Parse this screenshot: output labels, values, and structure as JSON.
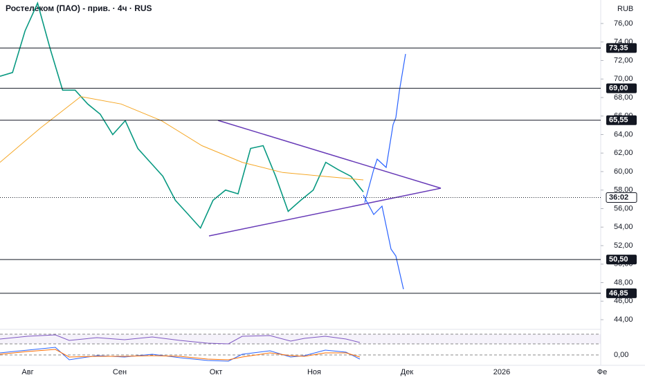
{
  "chart_data": {
    "type": "line",
    "title": "Ростелеком (ПАО) - прив. · 4ч · RUS",
    "currency": "RUB",
    "time_labels": [
      "Авг",
      "Сен",
      "Окт",
      "Ноя",
      "Дек",
      "2026",
      "Фе"
    ],
    "ylim": [
      43,
      78.5
    ],
    "yticks": [
      {
        "value": 44,
        "label": "44,00"
      },
      {
        "value": 46,
        "label": "46,00"
      },
      {
        "value": 48,
        "label": "48,00"
      },
      {
        "value": 50,
        "label": "50,00"
      },
      {
        "value": 52,
        "label": "52,00"
      },
      {
        "value": 54,
        "label": "54,00"
      },
      {
        "value": 56,
        "label": "56,00"
      },
      {
        "value": 58,
        "label": "58,00"
      },
      {
        "value": 60,
        "label": "60,00"
      },
      {
        "value": 62,
        "label": "62,00"
      },
      {
        "value": 64,
        "label": "64,00"
      },
      {
        "value": 66,
        "label": "66,00"
      },
      {
        "value": 68,
        "label": "68,00"
      },
      {
        "value": 70,
        "label": "70,00"
      },
      {
        "value": 72,
        "label": "72,00"
      },
      {
        "value": 74,
        "label": "74,00"
      },
      {
        "value": 76,
        "label": "76,00"
      }
    ],
    "levels": [
      {
        "value": 73.35,
        "label": "73,35"
      },
      {
        "value": 69,
        "label": "69,00"
      },
      {
        "value": 65.55,
        "label": "65,55"
      },
      {
        "value": 50.5,
        "label": "50,50"
      },
      {
        "value": 46.85,
        "label": "46,85"
      }
    ],
    "current": {
      "value": 57.2,
      "label": "36:02"
    },
    "indicator_zero": {
      "value": 0,
      "label": "0,00"
    },
    "series": [
      {
        "name": "price",
        "color": "#089981",
        "values": [
          70.3,
          70.7,
          75.2,
          78.2,
          73.3,
          68.8,
          68.8,
          67.3,
          66.2,
          64.0,
          65.5,
          62.5,
          61.0,
          59.5,
          56.9,
          55.4,
          53.9,
          56.9,
          58.0,
          57.6,
          62.5,
          62.8,
          59.5,
          55.7,
          56.9,
          58.0,
          61.0,
          60.2,
          59.5,
          57.8
        ]
      },
      {
        "name": "ma",
        "color": "#f5a623",
        "values": [
          61.0,
          64.7,
          68.1,
          67.3,
          65.5,
          62.8,
          61.0,
          59.9,
          59.5,
          59.1
        ]
      }
    ]
  }
}
